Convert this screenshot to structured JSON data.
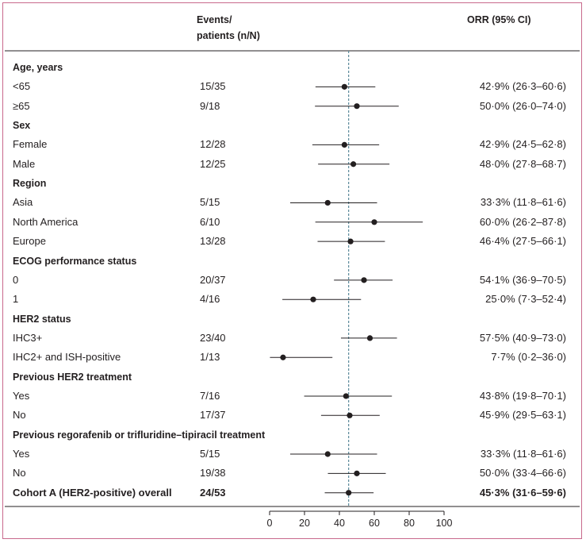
{
  "header": {
    "events_line1": "Events/",
    "events_line2": "patients (n/N)",
    "orr": "ORR (95% CI)"
  },
  "colors": {
    "frame": "#c8698c",
    "reference_line": "#5b8a9a",
    "marker": "#231f20"
  },
  "chart_data": {
    "type": "forest",
    "reference_value": 45.3,
    "xlim": [
      0,
      100
    ],
    "x_ticks": [
      0,
      20,
      40,
      60,
      80,
      100
    ],
    "groups": [
      {
        "title": "Age, years",
        "rows": [
          {
            "label": "<65",
            "events": "15/35",
            "orr_text": "42·9% (26·3–60·6)",
            "est": 42.9,
            "lo": 26.3,
            "hi": 60.6
          },
          {
            "label": "≥65",
            "events": "9/18",
            "orr_text": "50·0% (26·0–74·0)",
            "est": 50.0,
            "lo": 26.0,
            "hi": 74.0
          }
        ]
      },
      {
        "title": "Sex",
        "rows": [
          {
            "label": "Female",
            "events": "12/28",
            "orr_text": "42·9% (24·5–62·8)",
            "est": 42.9,
            "lo": 24.5,
            "hi": 62.8
          },
          {
            "label": "Male",
            "events": "12/25",
            "orr_text": "48·0% (27·8–68·7)",
            "est": 48.0,
            "lo": 27.8,
            "hi": 68.7
          }
        ]
      },
      {
        "title": "Region",
        "rows": [
          {
            "label": "Asia",
            "events": "5/15",
            "orr_text": "33·3% (11·8–61·6)",
            "est": 33.3,
            "lo": 11.8,
            "hi": 61.6
          },
          {
            "label": "North America",
            "events": "6/10",
            "orr_text": "60·0% (26·2–87·8)",
            "est": 60.0,
            "lo": 26.2,
            "hi": 87.8
          },
          {
            "label": "Europe",
            "events": "13/28",
            "orr_text": "46·4% (27·5–66·1)",
            "est": 46.4,
            "lo": 27.5,
            "hi": 66.1
          }
        ]
      },
      {
        "title": "ECOG performance status",
        "rows": [
          {
            "label": "0",
            "events": "20/37",
            "orr_text": "54·1% (36·9–70·5)",
            "est": 54.1,
            "lo": 36.9,
            "hi": 70.5
          },
          {
            "label": "1",
            "events": "4/16",
            "orr_text": "25·0% (7·3–52·4)",
            "est": 25.0,
            "lo": 7.3,
            "hi": 52.4
          }
        ]
      },
      {
        "title": "HER2 status",
        "rows": [
          {
            "label": "IHC3+",
            "events": "23/40",
            "orr_text": "57·5% (40·9–73·0)",
            "est": 57.5,
            "lo": 40.9,
            "hi": 73.0
          },
          {
            "label": "IHC2+ and ISH-positive",
            "events": "1/13",
            "orr_text": "7·7% (0·2–36·0)",
            "est": 7.7,
            "lo": 0.2,
            "hi": 36.0
          }
        ]
      },
      {
        "title": "Previous HER2 treatment",
        "rows": [
          {
            "label": "Yes",
            "events": "7/16",
            "orr_text": "43·8% (19·8–70·1)",
            "est": 43.8,
            "lo": 19.8,
            "hi": 70.1
          },
          {
            "label": "No",
            "events": "17/37",
            "orr_text": "45·9% (29·5–63·1)",
            "est": 45.9,
            "lo": 29.5,
            "hi": 63.1
          }
        ]
      },
      {
        "title": "Previous regorafenib or trifluridine–tipiracil treatment",
        "rows": [
          {
            "label": "Yes",
            "events": "5/15",
            "orr_text": "33·3% (11·8–61·6)",
            "est": 33.3,
            "lo": 11.8,
            "hi": 61.6
          },
          {
            "label": "No",
            "events": "19/38",
            "orr_text": "50·0% (33·4–66·6)",
            "est": 50.0,
            "lo": 33.4,
            "hi": 66.6
          }
        ]
      }
    ],
    "overall": {
      "label": "Cohort A (HER2-positive) overall",
      "events": "24/53",
      "orr_text": "45·3% (31·6–59·6)",
      "est": 45.3,
      "lo": 31.6,
      "hi": 59.6
    }
  }
}
